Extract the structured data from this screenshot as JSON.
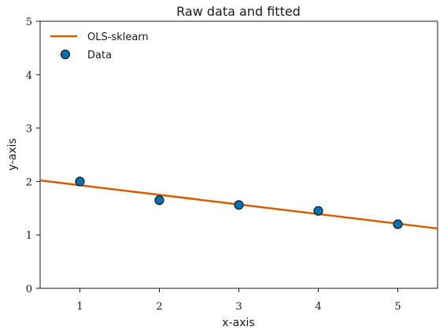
{
  "chart_data": {
    "type": "scatter",
    "title": "Raw data and fitted",
    "xlabel": "x-axis",
    "ylabel": "y-axis",
    "xlim": [
      0.5,
      5.5
    ],
    "ylim": [
      0,
      5
    ],
    "xticks": [
      "1",
      "2",
      "3",
      "4",
      "5"
    ],
    "yticks": [
      "0",
      "1",
      "2",
      "3",
      "4",
      "5"
    ],
    "grid": false,
    "legend_position": "top-left",
    "series": [
      {
        "name": "OLS-sklearn",
        "kind": "line",
        "color": "#d55e00",
        "x": [
          0.5,
          5.5
        ],
        "y": [
          2.02,
          1.12
        ]
      },
      {
        "name": "Data",
        "kind": "scatter",
        "color": "#0072b2",
        "x": [
          1,
          2,
          3,
          4,
          5
        ],
        "y": [
          2.0,
          1.65,
          1.56,
          1.45,
          1.2
        ]
      }
    ]
  }
}
